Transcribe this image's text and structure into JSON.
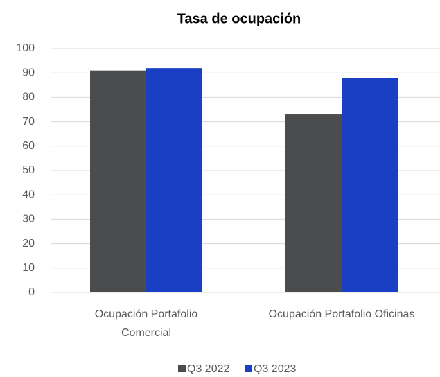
{
  "chart_data": {
    "type": "bar",
    "title": "Tasa de ocupación",
    "categories": [
      "Ocupación Portafolio Comercial",
      "Ocupación Portafolio Oficinas"
    ],
    "series": [
      {
        "name": "Q3 2022",
        "color": "#4a4c4e",
        "values": [
          91,
          73
        ]
      },
      {
        "name": "Q3 2023",
        "color": "#1a3fc4",
        "values": [
          92,
          88
        ]
      }
    ],
    "ylim": [
      0,
      100
    ],
    "yticks": [
      0,
      10,
      20,
      30,
      40,
      50,
      60,
      70,
      80,
      90,
      100
    ],
    "grid": true,
    "legend": "bottom"
  }
}
